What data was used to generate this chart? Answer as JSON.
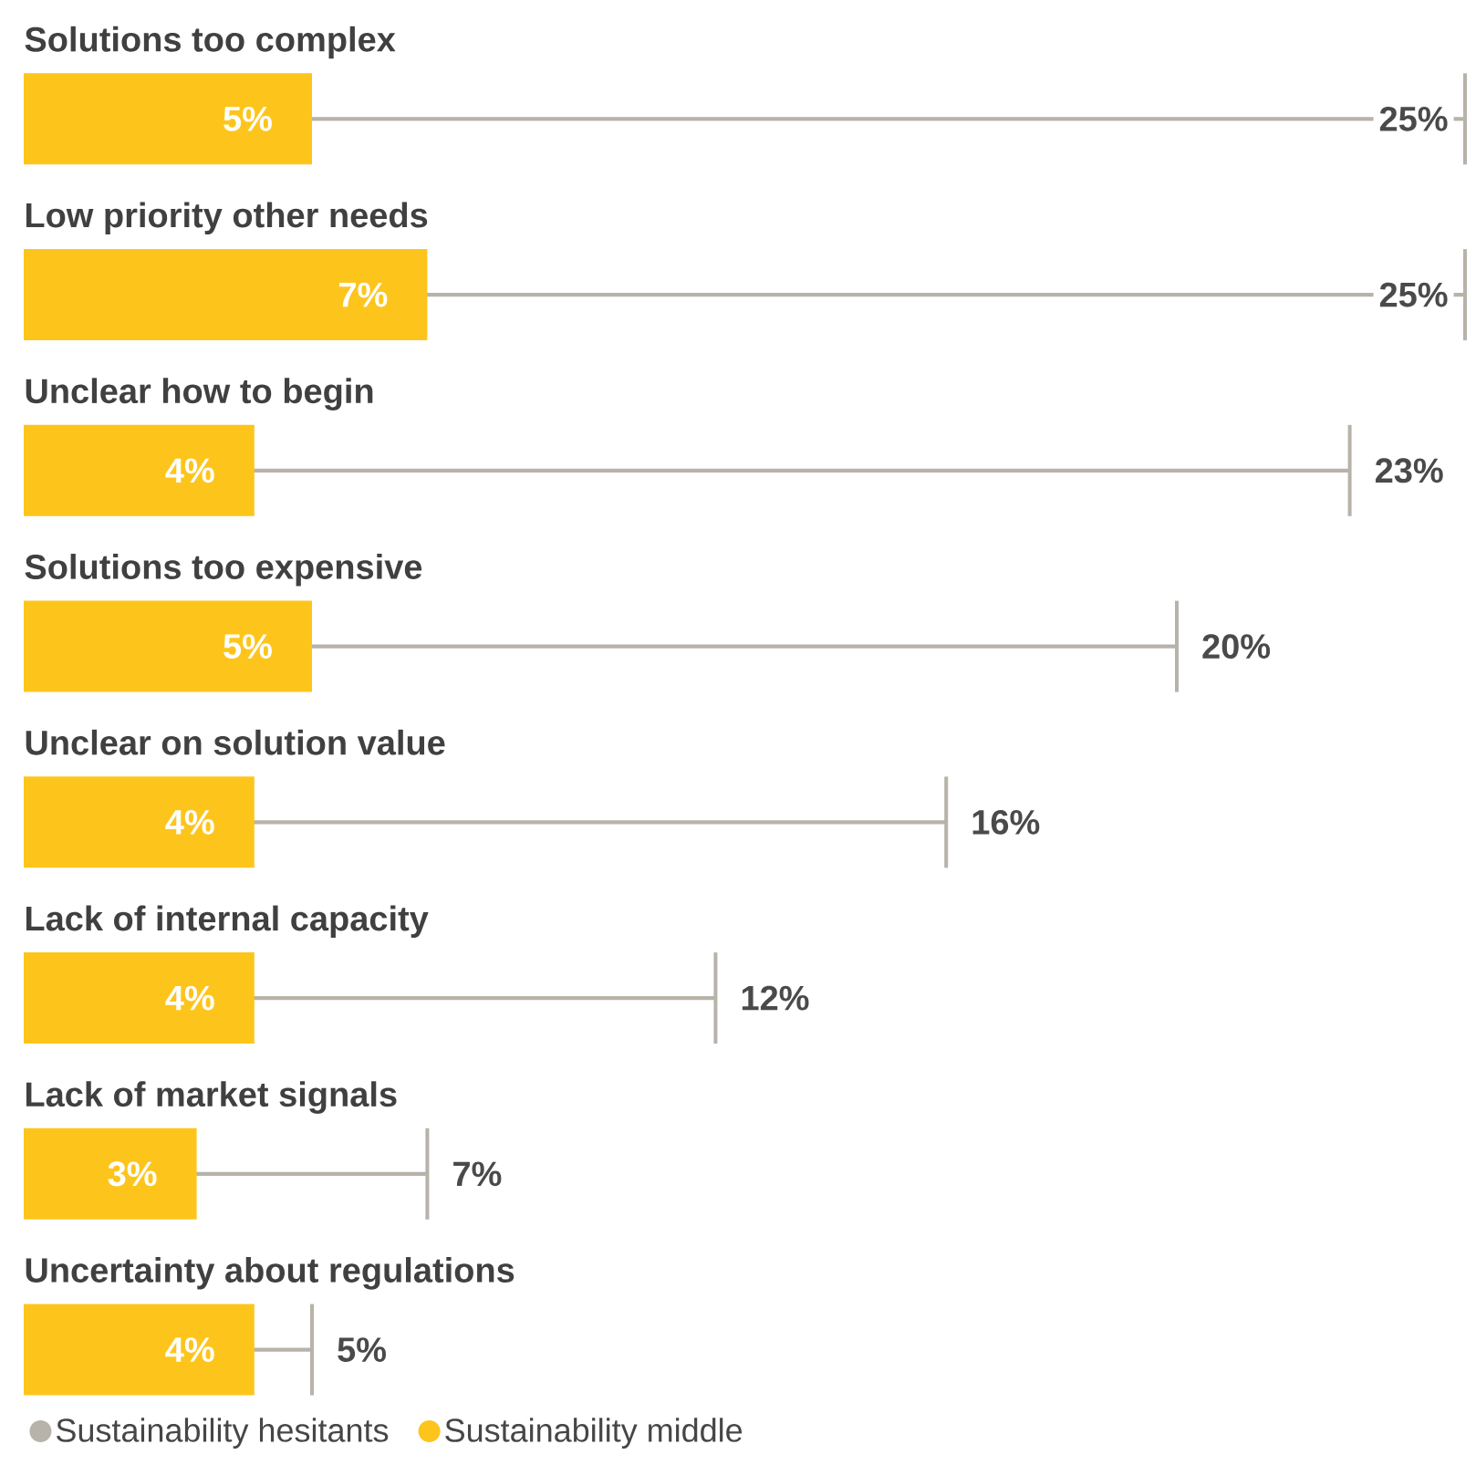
{
  "chart_data": {
    "type": "bar",
    "orientation": "horizontal",
    "categories": [
      "Solutions too complex",
      "Low priority other needs",
      "Unclear how to begin",
      "Solutions too expensive",
      "Unclear on solution value",
      "Lack of internal capacity",
      "Lack of market signals",
      "Uncertainty about regulations"
    ],
    "series": [
      {
        "name": "Sustainability hesitants",
        "type": "bar",
        "color": "#b7b3aa",
        "values": [
          25,
          25,
          23,
          20,
          16,
          12,
          7,
          5
        ],
        "value_labels": [
          "25%",
          "25%",
          "23%",
          "20%",
          "16%",
          "12%",
          "7%",
          "5%"
        ]
      },
      {
        "name": "Sustainability middle",
        "type": "bar",
        "color": "#fdc51c",
        "values": [
          5,
          7,
          4,
          5,
          4,
          4,
          3,
          4
        ],
        "value_labels": [
          "5%",
          "7%",
          "4%",
          "5%",
          "4%",
          "4%",
          "3%",
          "4%"
        ]
      }
    ],
    "legend": "bottom left"
  }
}
